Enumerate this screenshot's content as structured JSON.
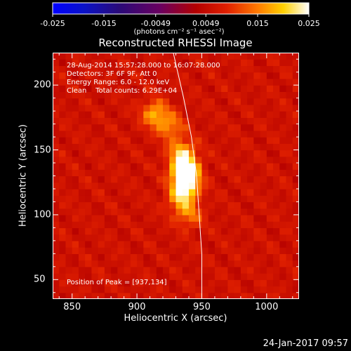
{
  "colorbar": {
    "tick_labels": [
      "-0.025",
      "-0.015",
      "-0.0049",
      "0.0049",
      "0.015",
      "0.025"
    ],
    "tick_values": [
      -0.025,
      -0.015,
      -0.0049,
      0.0049,
      0.015,
      0.025
    ],
    "units": "(photons cm⁻² s⁻¹ asec⁻²)",
    "range": [
      -0.025,
      0.025
    ]
  },
  "info": {
    "time": "28-Aug-2014 15:57:28.000 to 16:07:28.000",
    "detectors": "Detectors: 3F 6F 9F, Att 0",
    "energy": "Energy Range: 6.0 - 12.0 keV",
    "clean": "Clean    Total counts: 6.29E+04",
    "peak": "Position of Peak = [937,134]"
  },
  "timestamp": "24-Jan-2017 09:57",
  "chart_data": {
    "type": "heatmap",
    "title": "Reconstructed RHESSI Image",
    "xlabel": "Heliocentric X (arcsec)",
    "ylabel": "Heliocentric Y (arcsec)",
    "xlim": [
      835,
      1025
    ],
    "ylim": [
      35,
      225
    ],
    "x_ticks": [
      850,
      900,
      950,
      1000
    ],
    "y_ticks": [
      50,
      100,
      150,
      200
    ],
    "peak": [
      937,
      134
    ],
    "sources": [
      {
        "x": 937,
        "y": 134,
        "amplitude": 0.025
      },
      {
        "x": 938,
        "y": 122,
        "amplitude": 0.016
      },
      {
        "x": 935,
        "y": 148,
        "amplitude": 0.013
      },
      {
        "x": 914,
        "y": 178,
        "amplitude": 0.012
      },
      {
        "x": 926,
        "y": 168,
        "amplitude": 0.009
      },
      {
        "x": 933,
        "y": 112,
        "amplitude": 0.009
      },
      {
        "x": 940,
        "y": 100,
        "amplitude": 0.008
      }
    ],
    "limb_curve": [
      [
        928,
        225
      ],
      [
        936,
        190
      ],
      [
        942,
        160
      ],
      [
        946,
        130
      ],
      [
        948,
        100
      ],
      [
        950,
        70
      ],
      [
        950,
        35
      ]
    ],
    "colormap": "blue-purple-red-yellow-white"
  }
}
